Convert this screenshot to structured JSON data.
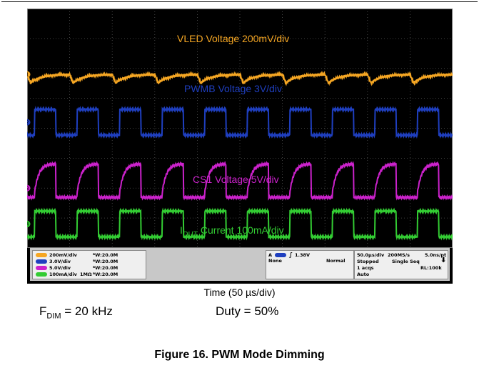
{
  "chart_data": {
    "type": "line",
    "title": "",
    "xlabel": "Time (50 µs/div)",
    "ylabel": "",
    "grid": true,
    "divisions": {
      "x": 10,
      "y": 8
    },
    "time_per_div_us": 50,
    "series": [
      {
        "name": "VLED Voltage 200mV/div",
        "color": "#f5a623",
        "label": "VLED Voltage 200mV/div",
        "level_div": 5.8,
        "shape": "ripple",
        "period_us": 50,
        "duty": 0.5
      },
      {
        "name": "PWMB Voltage 3V/div",
        "color": "#1f3fbf",
        "label": "PWMB Voltage 3V/div",
        "level_div": 4.2,
        "shape": "square",
        "period_us": 50,
        "duty": 0.5
      },
      {
        "name": "CS1 Voltage 5V/div",
        "color": "#cc22cc",
        "label": "CS1 Voltage 5V/div",
        "level_div": 2.0,
        "shape": "rc",
        "period_us": 50,
        "duty": 0.5
      },
      {
        "name": "IOUT Current 100mA/div",
        "color": "#33cc33",
        "label": "Current 100mA/div",
        "label_sym": "I",
        "label_sub": "OUT",
        "level_div": 0.8,
        "shape": "square",
        "period_us": 50,
        "duty": 0.5
      }
    ]
  },
  "channel_markers": [
    "1",
    "2",
    "3",
    "4"
  ],
  "scope_status": {
    "channels": [
      {
        "scale": "200mV/div",
        "bw": "ᴮW:20.0M",
        "prefix": "",
        "color": "#f5a623",
        "id": "C1"
      },
      {
        "scale": "3.0V/div",
        "bw": "ᴮW:20.0M",
        "prefix": "",
        "color": "#1f3fbf",
        "id": "C2"
      },
      {
        "scale": "5.0V/div",
        "bw": "ᴮW:20.0M",
        "prefix": "",
        "color": "#cc22cc",
        "id": "C3"
      },
      {
        "scale": "100mA/div",
        "bw": "ᴮW:20.0M",
        "prefix": "1MΩ",
        "color": "#33cc33",
        "id": "C4"
      }
    ],
    "trigger": {
      "label": "A",
      "level": "1.38V",
      "source": "None",
      "mode": "Normal"
    },
    "acq": {
      "timebase": "50.0µs/div",
      "sample_rate": "200MS/s",
      "resolution": "5.0ns/pt",
      "state": "Stopped",
      "seq": "Single Seq",
      "acqs": "1 acqs",
      "rl": "RL:100k",
      "mode": "Auto"
    }
  },
  "annotations": {
    "fdim_sym": "F",
    "fdim_sub": "DIM",
    "fdim_val": " = 20 kHz",
    "duty": "Duty = 50%"
  },
  "caption": "Figure 16. PWM Mode Dimming"
}
